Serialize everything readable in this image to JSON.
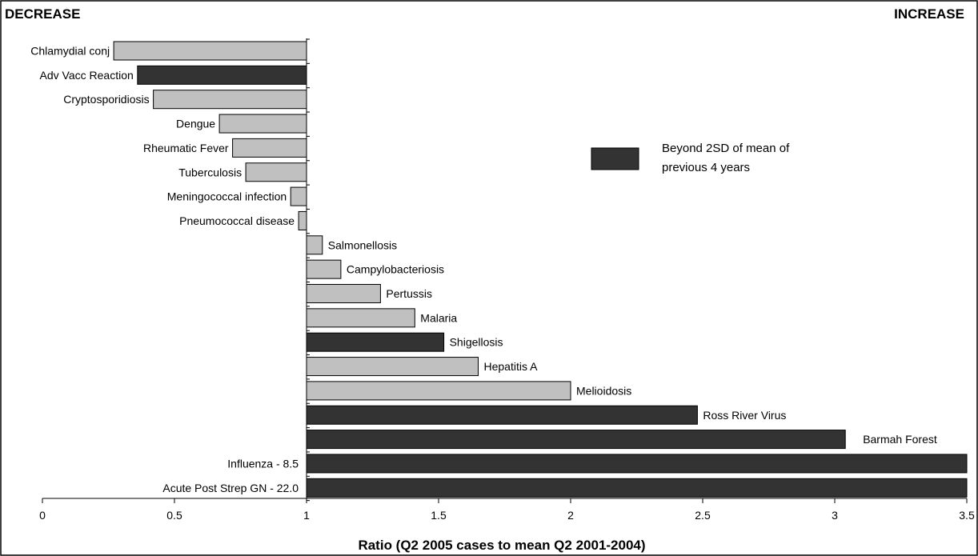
{
  "chart_data": {
    "type": "bar",
    "orientation": "horizontal",
    "baseline": 1,
    "xlim": [
      0,
      3.5
    ],
    "xticks": [
      0,
      0.5,
      1,
      1.5,
      2,
      2.5,
      3,
      3.5
    ],
    "xtick_labels": [
      "0",
      "0.5",
      "1",
      "1.5",
      "2",
      "2.5",
      "3",
      "3.5"
    ],
    "xlabel": "Ratio (Q2 2005 cases to mean Q2 2001-2004)",
    "left_corner_label": "DECREASE",
    "right_corner_label": "INCREASE",
    "legend": {
      "placement": "right",
      "entries": [
        {
          "label_lines": [
            "Beyond 2SD of mean of",
            "previous 4 years"
          ],
          "color": "#333333"
        }
      ]
    },
    "colors": {
      "normal": "#c0c0c0",
      "beyond_2sd": "#333333",
      "border": "#000000"
    },
    "series": [
      {
        "category": "Chlamydial conj",
        "value": 0.27,
        "beyond_2sd": false
      },
      {
        "category": "Adv Vacc Reaction",
        "value": 0.36,
        "beyond_2sd": true
      },
      {
        "category": "Cryptosporidiosis",
        "value": 0.42,
        "beyond_2sd": false
      },
      {
        "category": "Dengue",
        "value": 0.67,
        "beyond_2sd": false
      },
      {
        "category": "Rheumatic Fever",
        "value": 0.72,
        "beyond_2sd": false
      },
      {
        "category": "Tuberculosis",
        "value": 0.77,
        "beyond_2sd": false
      },
      {
        "category": "Meningococcal infection",
        "value": 0.94,
        "beyond_2sd": false
      },
      {
        "category": "Pneumococcal disease",
        "value": 0.97,
        "beyond_2sd": false
      },
      {
        "category": "Salmonellosis",
        "value": 1.06,
        "beyond_2sd": false
      },
      {
        "category": "Campylobacteriosis",
        "value": 1.13,
        "beyond_2sd": false
      },
      {
        "category": "Pertussis",
        "value": 1.28,
        "beyond_2sd": false
      },
      {
        "category": "Malaria",
        "value": 1.41,
        "beyond_2sd": false
      },
      {
        "category": "Shigellosis",
        "value": 1.52,
        "beyond_2sd": true
      },
      {
        "category": "Hepatitis A",
        "value": 1.65,
        "beyond_2sd": false
      },
      {
        "category": "Melioidosis",
        "value": 2.0,
        "beyond_2sd": false
      },
      {
        "category": "Ross River Virus",
        "value": 2.48,
        "beyond_2sd": true
      },
      {
        "category": "Barmah Forest",
        "value": 3.04,
        "beyond_2sd": true,
        "label_outside_right": true
      },
      {
        "category": "Influenza - 8.5",
        "value": 8.5,
        "beyond_2sd": true,
        "clipped": true
      },
      {
        "category": "Acute Post Strep GN - 22.0",
        "value": 22.0,
        "beyond_2sd": true,
        "clipped": true
      }
    ]
  }
}
